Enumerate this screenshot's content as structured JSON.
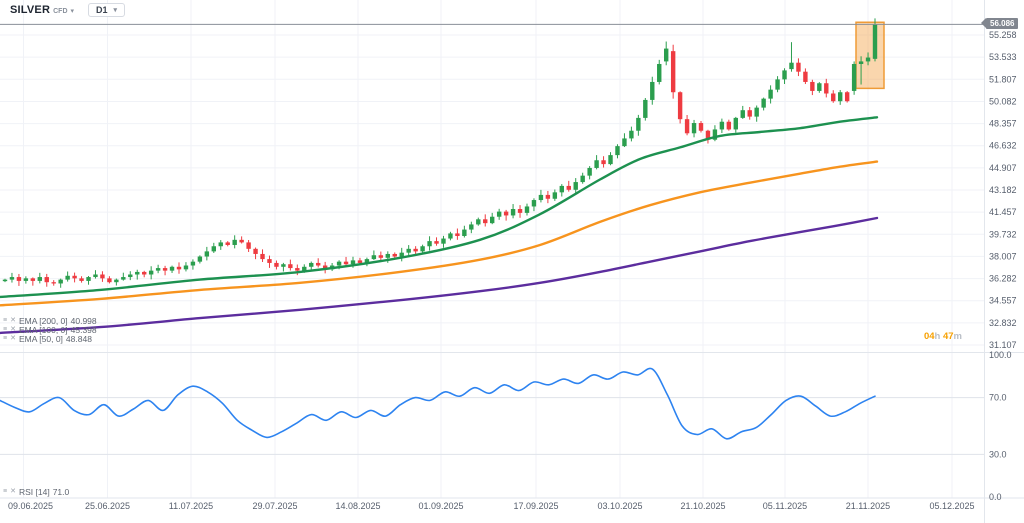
{
  "header": {
    "symbol": "SILVER",
    "symbol_type": "CFD",
    "timeframe": "D1"
  },
  "price_scale": {
    "current_price": "56.086",
    "countdown": {
      "h": "04",
      "h_unit": "h",
      "m": "47",
      "m_unit": "m"
    }
  },
  "indicators": {
    "overlays": [
      {
        "label": "EMA [200, 0]",
        "value": "40.998",
        "color": "#5c2d9e"
      },
      {
        "label": "EMA [100, 0]",
        "value": "45.398",
        "color": "#f7941e"
      },
      {
        "label": "EMA [50, 0]",
        "value": "48.848",
        "color": "#1d9150"
      }
    ],
    "rsi": {
      "label": "RSI [14]",
      "value": "71.0"
    }
  },
  "colors": {
    "candle_up": "#2b9e4e",
    "candle_down": "#ee3b41",
    "ema50": "#1d9150",
    "ema100": "#f7941e",
    "ema200": "#5c2d9e",
    "rsi_line": "#2d83f0",
    "highlight_fill": "#f5a44a",
    "highlight_stroke": "#ef9b36",
    "grid": "#f0f2f7",
    "separator": "#e2e6ec",
    "axis_text": "#565e6c",
    "price_line": "#8a8f98"
  },
  "chart_data": {
    "type": "candlestick",
    "title": "SILVER CFD, D1, with EMA 50/100/200 and RSI(14)",
    "dates": [
      "09.06.2025",
      "25.06.2025",
      "11.07.2025",
      "29.07.2025",
      "14.08.2025",
      "01.09.2025",
      "17.09.2025",
      "03.10.2025",
      "21.10.2025",
      "05.11.2025",
      "21.11.2025",
      "05.12.2025"
    ],
    "price_ticks": [
      55.258,
      53.533,
      51.807,
      50.082,
      48.357,
      46.632,
      44.907,
      43.182,
      41.457,
      39.732,
      38.007,
      36.282,
      34.557,
      32.832,
      31.107
    ],
    "current_price": 56.086,
    "ylim": [
      31.107,
      56.983
    ],
    "candles": {
      "closes": [
        36.2,
        36.4,
        36.1,
        36.3,
        36.1,
        36.4,
        36.0,
        35.9,
        36.2,
        36.5,
        36.3,
        36.1,
        36.4,
        36.6,
        36.3,
        36.0,
        36.2,
        36.4,
        36.6,
        36.8,
        36.6,
        36.9,
        37.1,
        36.9,
        37.2,
        37.0,
        37.3,
        37.6,
        38.0,
        38.4,
        38.8,
        39.1,
        38.9,
        39.3,
        39.1,
        38.6,
        38.2,
        37.8,
        37.5,
        37.2,
        37.4,
        37.1,
        36.9,
        37.2,
        37.5,
        37.3,
        37.0,
        37.3,
        37.6,
        37.4,
        37.7,
        37.5,
        37.8,
        38.1,
        37.9,
        38.2,
        38.0,
        38.3,
        38.6,
        38.4,
        38.8,
        39.2,
        39.0,
        39.4,
        39.8,
        39.6,
        40.1,
        40.5,
        40.9,
        40.6,
        41.1,
        41.5,
        41.2,
        41.7,
        41.4,
        41.9,
        42.4,
        42.8,
        42.5,
        43.0,
        43.5,
        43.2,
        43.8,
        44.3,
        44.9,
        45.5,
        45.2,
        45.9,
        46.6,
        47.2,
        47.8,
        48.8,
        50.2,
        51.6,
        53.0,
        54.2,
        50.8,
        48.7,
        47.6,
        48.4,
        47.8,
        47.1,
        47.9,
        48.5,
        47.9,
        48.8,
        49.4,
        48.9,
        49.6,
        50.3,
        51.0,
        51.8,
        52.5,
        53.1,
        52.4,
        51.6,
        50.9,
        51.5,
        50.7,
        50.1,
        50.8,
        50.1,
        53.0,
        53.2,
        53.5,
        56.086
      ],
      "ohlc_overrides": {
        "95": [
          53.2,
          54.75,
          52.9,
          54.2
        ],
        "96": [
          54.0,
          54.5,
          50.3,
          50.8
        ],
        "113": [
          52.6,
          54.7,
          52.4,
          53.1
        ],
        "122": [
          50.9,
          53.2,
          50.6,
          53.0
        ],
        "123": [
          53.0,
          53.6,
          51.4,
          53.2
        ],
        "124": [
          53.2,
          53.9,
          52.9,
          53.5
        ],
        "125": [
          53.4,
          56.55,
          53.2,
          56.086
        ]
      }
    },
    "ema_series": [
      {
        "name": "EMA 50",
        "color_key": "ema50",
        "anchors": [
          [
            0,
            34.85
          ],
          [
            100,
            35.4
          ],
          [
            200,
            36.2
          ],
          [
            300,
            36.8
          ],
          [
            400,
            37.9
          ],
          [
            480,
            39.3
          ],
          [
            540,
            41.3
          ],
          [
            600,
            44.0
          ],
          [
            640,
            45.6
          ],
          [
            680,
            46.5
          ],
          [
            720,
            47.4
          ],
          [
            760,
            47.7
          ],
          [
            800,
            48.0
          ],
          [
            840,
            48.5
          ],
          [
            877,
            48.848
          ]
        ]
      },
      {
        "name": "EMA 100",
        "color_key": "ema100",
        "anchors": [
          [
            0,
            34.2
          ],
          [
            100,
            34.7
          ],
          [
            200,
            35.4
          ],
          [
            300,
            35.95
          ],
          [
            400,
            36.8
          ],
          [
            480,
            37.75
          ],
          [
            540,
            38.9
          ],
          [
            600,
            40.7
          ],
          [
            650,
            42.0
          ],
          [
            700,
            43.0
          ],
          [
            750,
            43.75
          ],
          [
            800,
            44.45
          ],
          [
            840,
            45.0
          ],
          [
            877,
            45.398
          ]
        ]
      },
      {
        "name": "EMA 200",
        "color_key": "ema200",
        "anchors": [
          [
            0,
            32.05
          ],
          [
            100,
            32.5
          ],
          [
            200,
            33.2
          ],
          [
            300,
            33.85
          ],
          [
            400,
            34.6
          ],
          [
            480,
            35.3
          ],
          [
            540,
            35.95
          ],
          [
            600,
            36.8
          ],
          [
            650,
            37.6
          ],
          [
            700,
            38.4
          ],
          [
            750,
            39.2
          ],
          [
            800,
            39.9
          ],
          [
            840,
            40.45
          ],
          [
            877,
            40.998
          ]
        ]
      }
    ],
    "rsi": {
      "period": 14,
      "current": 71.0,
      "ticks": [
        100,
        70,
        30,
        0
      ],
      "values": [
        68,
        63,
        60,
        66,
        70,
        61,
        58,
        65,
        57,
        62,
        68,
        61,
        72,
        78,
        74,
        66,
        54,
        47,
        42,
        46,
        52,
        58,
        54,
        60,
        56,
        61,
        57,
        65,
        70,
        68,
        74,
        71,
        77,
        73,
        79,
        75,
        81,
        79,
        83,
        80,
        86,
        83,
        88,
        86,
        90,
        72,
        50,
        44,
        48,
        41,
        46,
        49,
        58,
        68,
        71,
        64,
        57,
        60,
        66,
        71
      ]
    },
    "highlight_box": {
      "x1": 856,
      "x2": 884,
      "price_top": 56.25,
      "price_bottom": 51.1
    }
  }
}
